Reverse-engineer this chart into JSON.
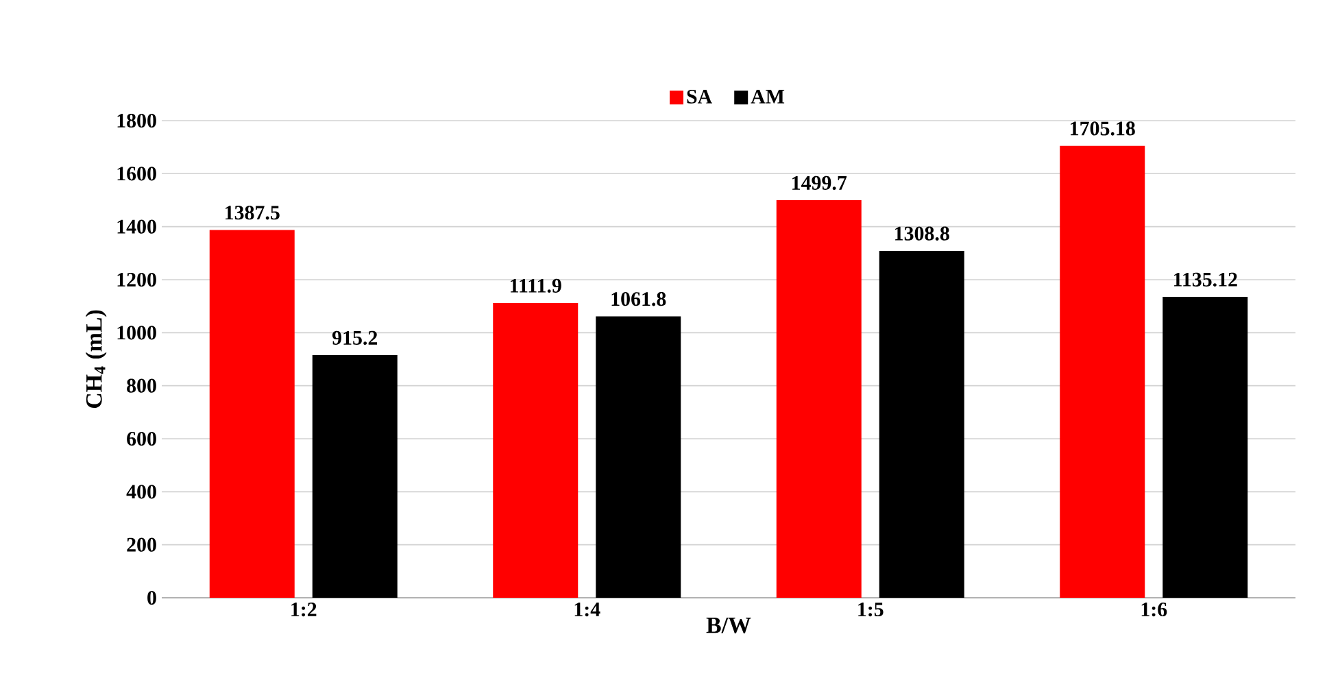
{
  "chart_data": {
    "type": "bar",
    "xlabel": "B/W",
    "ylabel": "CH$_{4}$ (mL)",
    "categories": [
      "1:2",
      "1:4",
      "1:5",
      "1:6"
    ],
    "series": [
      {
        "name": "SA",
        "color": "#ff0000",
        "values": [
          1387.5,
          1111.9,
          1499.7,
          1705.18
        ]
      },
      {
        "name": "AM",
        "color": "#000000",
        "values": [
          915.2,
          1061.8,
          1308.8,
          1135.12
        ]
      }
    ],
    "ylim": [
      0,
      1800
    ],
    "yticks": [
      0,
      200,
      400,
      600,
      800,
      1000,
      1200,
      1400,
      1600,
      1800
    ],
    "grid": "y",
    "legend": "top",
    "data_labels": true
  }
}
